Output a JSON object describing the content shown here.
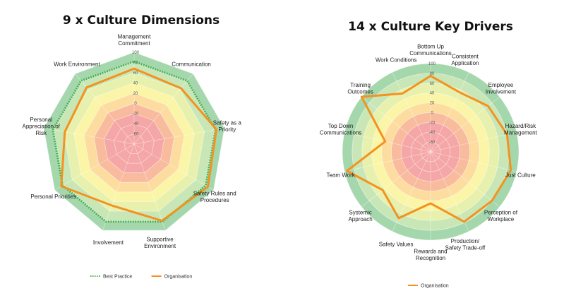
{
  "chart_data": [
    {
      "type": "radar",
      "title": "9 x Culture Dimensions",
      "categories": [
        "Management Commitment",
        "Communication",
        "Safety as a Priority",
        "Safety Rules and Procedures",
        "Supportive Environment",
        "Involvement",
        "Personal Priorities",
        "Personal Appreciation of Risk",
        "Work Environment"
      ],
      "category_lines": [
        [
          "Management",
          "Commitment"
        ],
        [
          "Communication"
        ],
        [
          "Safety as a",
          "Priority"
        ],
        [
          "Safety Rules and",
          "Procedures"
        ],
        [
          "Supportive",
          "Environment"
        ],
        [
          "Involvement"
        ],
        [
          "Personal Priorities"
        ],
        [
          "Personal",
          "Appreciation of",
          "Risk"
        ],
        [
          "Work Environment"
        ]
      ],
      "ticks": [
        "100",
        "80",
        "60",
        "40",
        "20",
        "0",
        "-20",
        "-40",
        "-60"
      ],
      "ylim": [
        -80,
        100
      ],
      "series": [
        {
          "name": "Best Practice",
          "values": [
            82,
            82,
            82,
            82,
            82,
            82,
            82,
            82,
            82
          ],
          "color": "#3fae4a",
          "style": "dotted"
        },
        {
          "name": "Organisation",
          "values": [
            68,
            63,
            84,
            87,
            80,
            48,
            85,
            58,
            65
          ],
          "color": "#f4921f",
          "style": "solid"
        }
      ],
      "legend": "bottom",
      "band_colors": [
        "#a5d7ad",
        "#c9e7b6",
        "#e7f1ad",
        "#fbf5a8",
        "#fddca0",
        "#f9bb9e",
        "#f5a6a6"
      ]
    },
    {
      "type": "radar",
      "title": "14 x Culture Key Drivers",
      "categories": [
        "Bottom Up Communications",
        "Consistent Application",
        "Employee Involvement",
        "Hazard/Risk Management",
        "Just Culture",
        "Perception of Workplace",
        "Production/ Safety Trade-off",
        "Rewards and Recognition",
        "Safety Values",
        "Systemic Approach",
        "Team Work",
        "Top Down Communications",
        "Training Outcomes",
        "Work Conditions"
      ],
      "category_lines": [
        [
          "Bottom Up",
          "Communications"
        ],
        [
          "Consistent",
          "Application"
        ],
        [
          "Employee",
          "Involvement"
        ],
        [
          "Hazard/Risk",
          "Management"
        ],
        [
          "Just Culture"
        ],
        [
          "Perception of",
          "Workplace"
        ],
        [
          "Production/",
          "Safety Trade-off"
        ],
        [
          "Rewards and",
          "Recognition"
        ],
        [
          "Safety Values"
        ],
        [
          "Systemic",
          "Approach"
        ],
        [
          "Team Work"
        ],
        [
          "Top Down",
          "Communications"
        ],
        [
          "Training",
          "Outcomes"
        ],
        [
          "Work Conditions"
        ]
      ],
      "ticks": [
        "100",
        "80",
        "60",
        "40",
        "20",
        "0",
        "-20",
        "-40",
        "-60"
      ],
      "ylim": [
        -80,
        100
      ],
      "series": [
        {
          "name": "Organisation",
          "values": [
            75,
            55,
            70,
            80,
            88,
            80,
            78,
            25,
            70,
            45,
            95,
            15,
            100,
            52
          ],
          "color": "#f4921f",
          "style": "solid"
        }
      ],
      "legend": "bottom",
      "band_colors": [
        "#a5d7ad",
        "#c9e7b6",
        "#e7f1ad",
        "#fbf5a8",
        "#fddca0",
        "#f9bb9e",
        "#f5a6a6"
      ]
    }
  ]
}
